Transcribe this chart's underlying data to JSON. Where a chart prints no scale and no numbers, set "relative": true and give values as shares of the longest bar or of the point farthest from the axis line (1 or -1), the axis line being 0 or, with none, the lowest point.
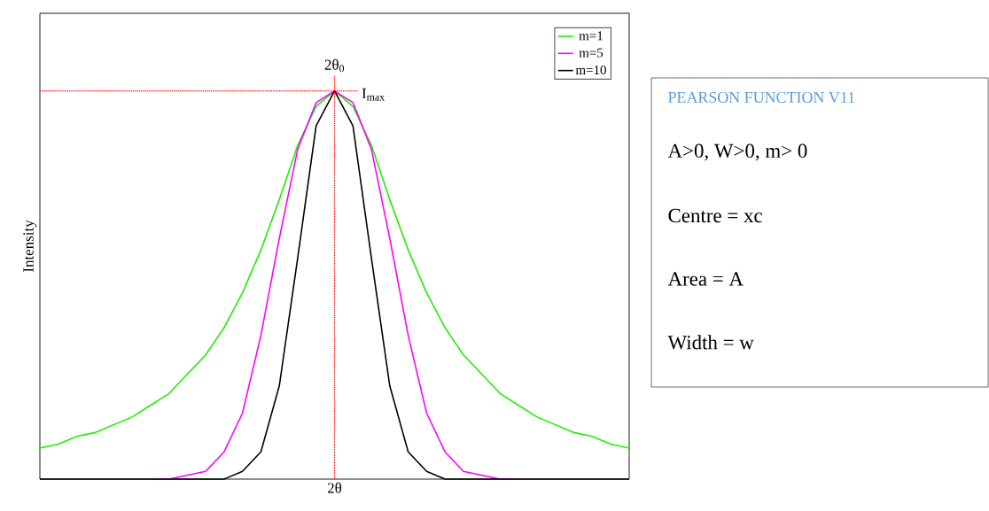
{
  "chart_data": [
    {
      "type": "line",
      "relative": true,
      "xlabel": "2θ",
      "ylabel": "Intensity",
      "legend": "top right",
      "categories": [
        null,
        null,
        null,
        null,
        null,
        null,
        null,
        null,
        null,
        null,
        null,
        null,
        null,
        null,
        null,
        null,
        null,
        null,
        null,
        null,
        null,
        null,
        null,
        null,
        null,
        null,
        null,
        null,
        null,
        null,
        null,
        null,
        null
      ],
      "series": [
        {
          "name": "m=1",
          "color": "#22ee00",
          "values": [
            0.08,
            0.09,
            0.11,
            0.12,
            0.14,
            0.16,
            0.19,
            0.22,
            0.27,
            0.32,
            0.39,
            0.48,
            0.59,
            0.72,
            0.86,
            0.96,
            1,
            0.96,
            0.86,
            0.72,
            0.59,
            0.48,
            0.39,
            0.32,
            0.27,
            0.22,
            0.19,
            0.16,
            0.14,
            0.12,
            0.11,
            0.09,
            0.08
          ]
        },
        {
          "name": "m=5",
          "color": "#ff00ff",
          "values": [
            null,
            null,
            null,
            null,
            null,
            null,
            0,
            0,
            0.01,
            0.02,
            0.07,
            0.17,
            0.37,
            0.62,
            0.85,
            0.97,
            1,
            0.97,
            0.85,
            0.62,
            0.37,
            0.17,
            0.07,
            0.02,
            0.01,
            0,
            0,
            null,
            null,
            null,
            null,
            null,
            null
          ]
        },
        {
          "name": "m=10",
          "color": "#000000",
          "values": [
            0,
            0,
            0,
            0,
            0,
            0,
            0,
            0,
            0,
            0,
            0,
            0.02,
            0.07,
            0.24,
            0.57,
            0.91,
            1,
            0.91,
            0.57,
            0.24,
            0.07,
            0.02,
            0,
            0,
            0,
            0,
            0,
            0,
            0,
            0,
            0,
            0,
            0
          ]
        }
      ],
      "annotations": [
        "2θ$_{0}$"
      ],
      "ref_lines": [
        {
          "axis": "y",
          "value": 1,
          "label": "I$_{max}$",
          "color": "#ff0000",
          "line_style": "dotted"
        }
      ]
    },
    {
      "type": "other",
      "title": "PEARSON FUNCTION V11",
      "annotations": [
        "A>0, W>0, m> 0",
        "Centre = xc",
        "Area = A",
        "Width = w"
      ]
    }
  ]
}
